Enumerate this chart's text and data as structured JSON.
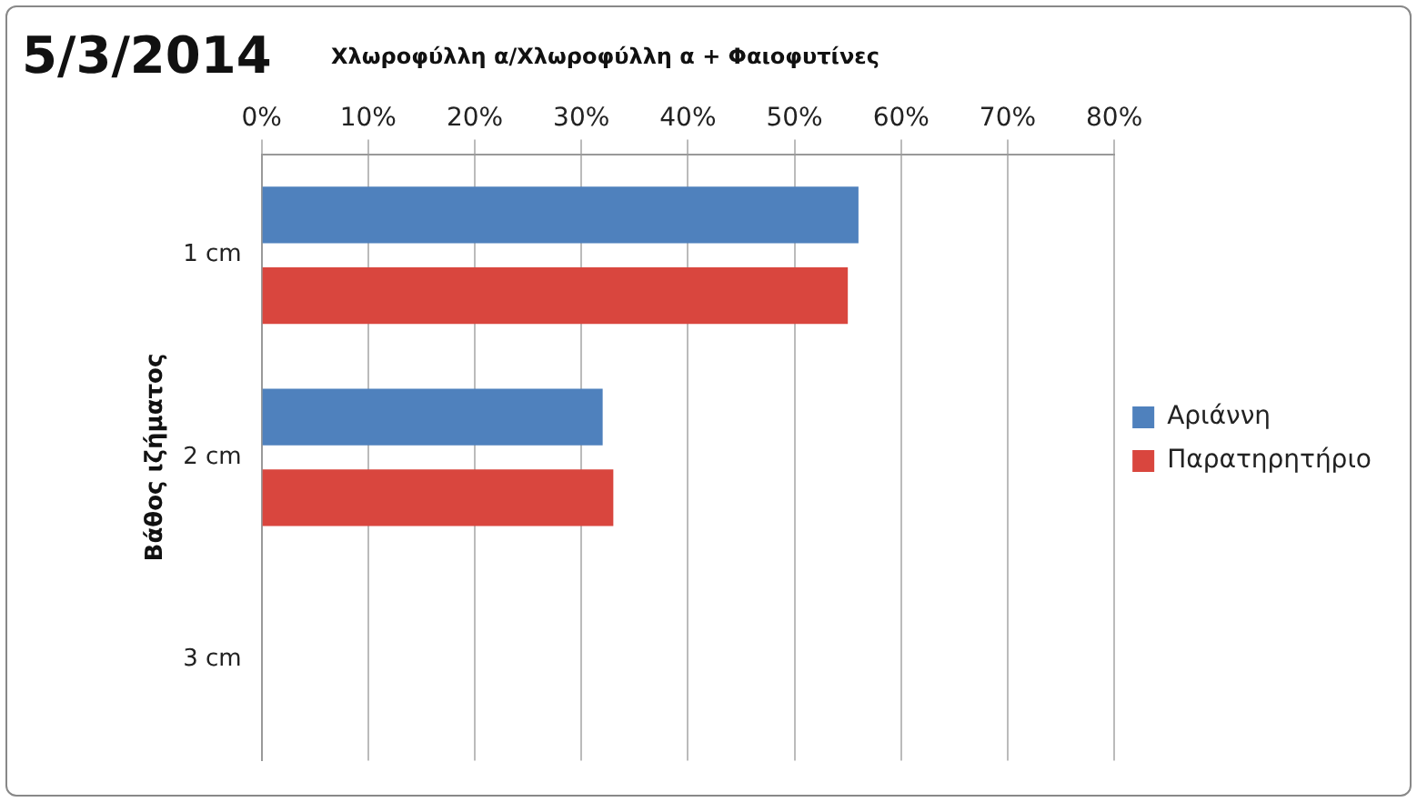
{
  "chart_data": {
    "type": "bar",
    "orientation": "horizontal",
    "title": "5/3/2014",
    "subtitle": "Χλωροφύλλη α/Χλωροφύλλη α + Φαιοφυτίνες",
    "ylabel": "Βάθος ιζήματος",
    "categories": [
      "1 cm",
      "2 cm",
      "3 cm"
    ],
    "series": [
      {
        "name": "Αριάννη",
        "color": "#4f81bd",
        "values": [
          56,
          32,
          null
        ]
      },
      {
        "name": "Παρατηρητήριο",
        "color": "#d9463e",
        "values": [
          55,
          33,
          null
        ]
      }
    ],
    "xlim": [
      0,
      80
    ],
    "xticks": [
      {
        "value": 0,
        "label": "0%"
      },
      {
        "value": 10,
        "label": "10%"
      },
      {
        "value": 20,
        "label": "20%"
      },
      {
        "value": 30,
        "label": "30%"
      },
      {
        "value": 40,
        "label": "40%"
      },
      {
        "value": 50,
        "label": "50%"
      },
      {
        "value": 60,
        "label": "60%"
      },
      {
        "value": 70,
        "label": "70%"
      },
      {
        "value": 80,
        "label": "80%"
      }
    ],
    "grid": "x",
    "legend": "right"
  }
}
